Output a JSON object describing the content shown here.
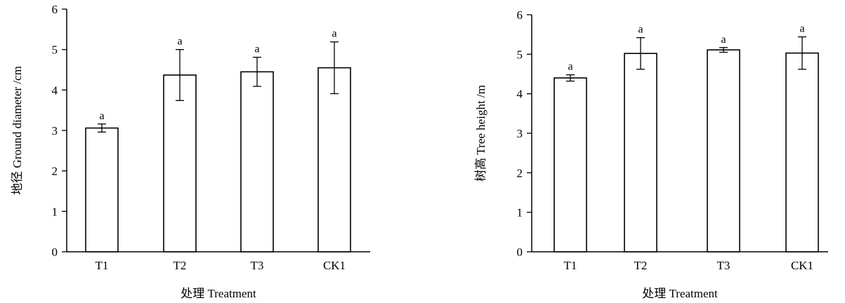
{
  "chart_data": [
    {
      "type": "bar",
      "categories": [
        "T1",
        "T2",
        "T3",
        "CK1"
      ],
      "values": [
        3.06,
        4.37,
        4.45,
        4.55
      ],
      "errors": [
        0.1,
        0.63,
        0.36,
        0.64
      ],
      "significance": [
        "a",
        "a",
        "a",
        "a"
      ],
      "xlabel": "处理 Treatment",
      "ylabel": "地径 Ground diameter /cm",
      "ylim": [
        0,
        6
      ],
      "yticks": [
        "0",
        "1",
        "2",
        "3",
        "4",
        "5",
        "6"
      ],
      "grid": false
    },
    {
      "type": "bar",
      "categories": [
        "T1",
        "T2",
        "T3",
        "CK1"
      ],
      "values": [
        4.4,
        5.02,
        5.11,
        5.03
      ],
      "errors": [
        0.08,
        0.4,
        0.06,
        0.41
      ],
      "significance": [
        "a",
        "a",
        "a",
        "a"
      ],
      "xlabel": "处理 Treatment",
      "ylabel": "树高 Tree height /m",
      "ylim": [
        0,
        6
      ],
      "yticks": [
        "0",
        "1",
        "2",
        "3",
        "4",
        "5",
        "6"
      ],
      "grid": false
    }
  ]
}
